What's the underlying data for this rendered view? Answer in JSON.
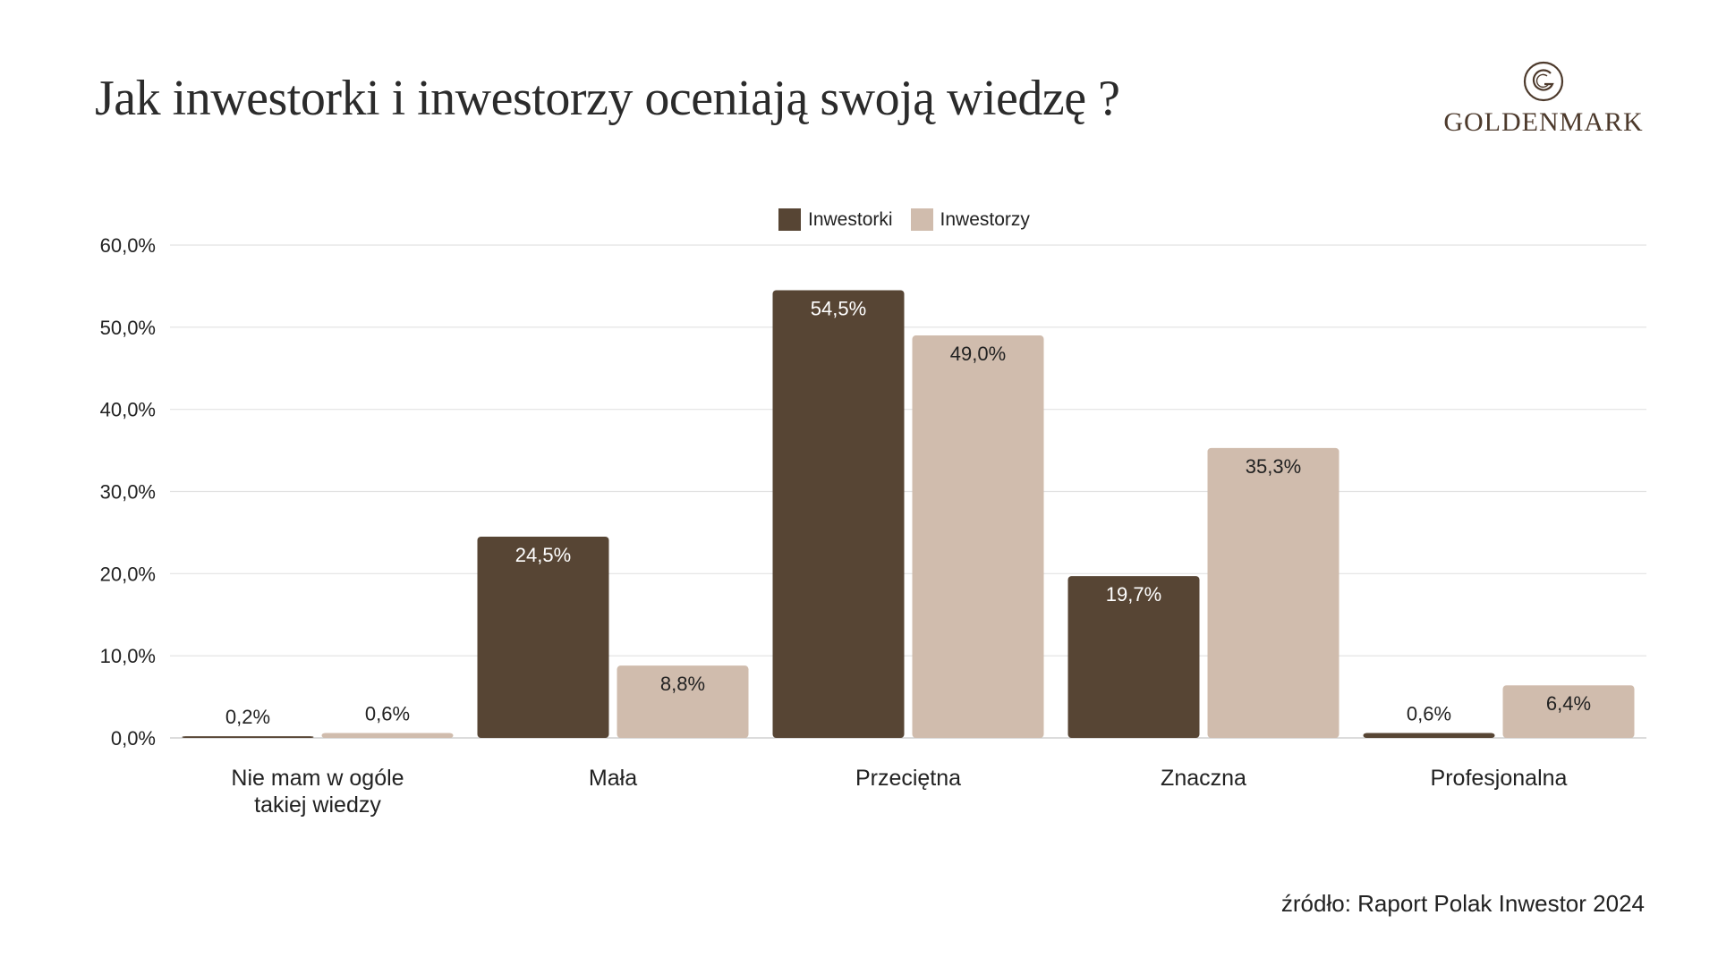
{
  "title": "Jak inwestorki i inwestorzy oceniają swoją wiedzę ?",
  "logo": {
    "text": "GOLDENMARK",
    "icon": "goldenmark-g-logo",
    "color": "#4d3a2c"
  },
  "source": "źródło: Raport Polak Inwestor 2024",
  "colors": {
    "inwestorki": "#574534",
    "inwestorzy": "#d0bcad",
    "grid": "#e2e2e2",
    "axis": "#c8c8c8"
  },
  "chart_data": {
    "type": "bar",
    "categories": [
      "Nie mam w ogóle takiej wiedzy",
      "Mała",
      "Przeciętna",
      "Znaczna",
      "Profesjonalna"
    ],
    "series": [
      {
        "name": "Inwestorki",
        "values": [
          0.2,
          24.5,
          54.5,
          19.7,
          0.6
        ],
        "labels": [
          "0,2%",
          "24,5%",
          "54,5%",
          "19,7%",
          "0,6%"
        ]
      },
      {
        "name": "Inwestorzy",
        "values": [
          0.6,
          8.8,
          49.0,
          35.3,
          6.4
        ],
        "labels": [
          "0,6%",
          "8,8%",
          "49,0%",
          "35,3%",
          "6,4%"
        ]
      }
    ],
    "yticks": [
      "0,0%",
      "10,0%",
      "20,0%",
      "30,0%",
      "40,0%",
      "50,0%",
      "60,0%"
    ],
    "ylim": [
      0,
      60
    ],
    "grid": true,
    "legend": "top-center"
  }
}
